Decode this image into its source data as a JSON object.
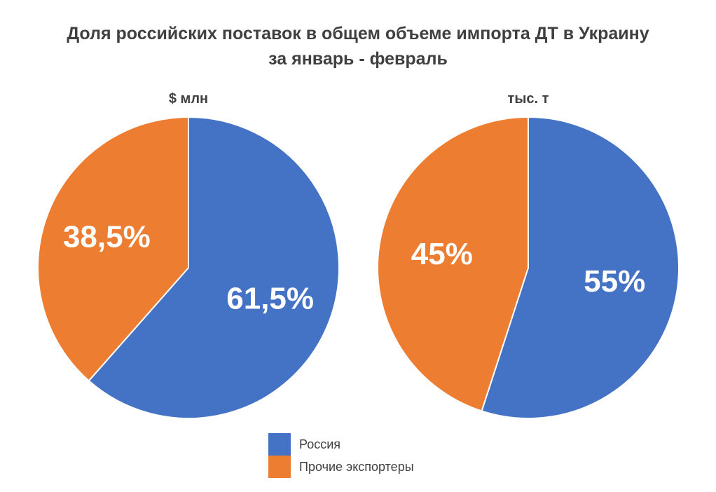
{
  "title_line1": "Доля российских поставок в общем объеме импорта ДТ в Украину",
  "title_line2": "за январь - февраль",
  "colors": {
    "russia": "#4472C4",
    "others": "#ED7D31"
  },
  "chart_data": [
    {
      "type": "pie",
      "title": "$ млн",
      "slices": [
        {
          "name": "Россия",
          "value": 61.5,
          "label": "61,5%"
        },
        {
          "name": "Прочие экспортеры",
          "value": 38.5,
          "label": "38,5%"
        }
      ]
    },
    {
      "type": "pie",
      "title": "тыс. т",
      "slices": [
        {
          "name": "Россия",
          "value": 55,
          "label": "55%"
        },
        {
          "name": "Прочие экспортеры",
          "value": 45,
          "label": "45%"
        }
      ]
    }
  ],
  "legend": {
    "placement": "bottom",
    "items": [
      {
        "label": "Россия",
        "color": "#4472C4"
      },
      {
        "label": "Прочие экспортеры",
        "color": "#ED7D31"
      }
    ]
  }
}
